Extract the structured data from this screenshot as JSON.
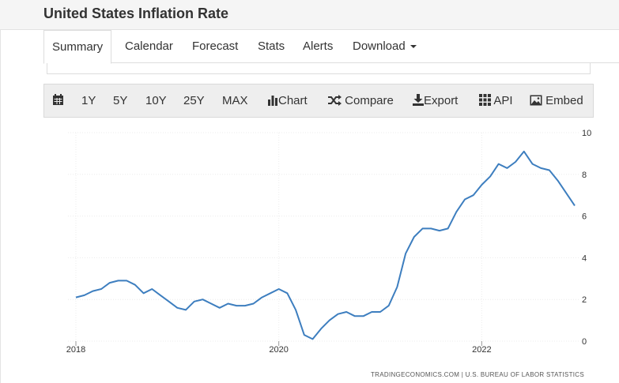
{
  "header": {
    "title": "United States Inflation Rate"
  },
  "tabs": [
    {
      "label": "Summary",
      "active": true
    },
    {
      "label": "Calendar"
    },
    {
      "label": "Forecast"
    },
    {
      "label": "Stats"
    },
    {
      "label": "Alerts"
    },
    {
      "label": "Download"
    }
  ],
  "toolbar": {
    "calendar_icon": "calendar-icon",
    "ranges": [
      "1Y",
      "5Y",
      "10Y",
      "25Y",
      "MAX"
    ],
    "chart_label": "Chart",
    "compare_label": "Compare",
    "export_label": "Export",
    "api_label": "API",
    "embed_label": "Embed"
  },
  "chart_data": {
    "type": "line",
    "color": "#3d7ebf",
    "x_ticks": [
      "2018",
      "2020",
      "2022"
    ],
    "y_ticks": [
      "0",
      "2",
      "4",
      "6",
      "8",
      "10"
    ],
    "ylim": [
      0,
      10
    ],
    "xlim": [
      "2018-01",
      "2022-12"
    ],
    "grid": true,
    "source": "TRADINGECONOMICS.COM | U.S. BUREAU OF LABOR STATISTICS",
    "x": [
      "2018-01",
      "2018-02",
      "2018-03",
      "2018-04",
      "2018-05",
      "2018-06",
      "2018-07",
      "2018-08",
      "2018-09",
      "2018-10",
      "2018-11",
      "2018-12",
      "2019-01",
      "2019-02",
      "2019-03",
      "2019-04",
      "2019-05",
      "2019-06",
      "2019-07",
      "2019-08",
      "2019-09",
      "2019-10",
      "2019-11",
      "2019-12",
      "2020-01",
      "2020-02",
      "2020-03",
      "2020-04",
      "2020-05",
      "2020-06",
      "2020-07",
      "2020-08",
      "2020-09",
      "2020-10",
      "2020-11",
      "2020-12",
      "2021-01",
      "2021-02",
      "2021-03",
      "2021-04",
      "2021-05",
      "2021-06",
      "2021-07",
      "2021-08",
      "2021-09",
      "2021-10",
      "2021-11",
      "2021-12",
      "2022-01",
      "2022-02",
      "2022-03",
      "2022-04",
      "2022-05",
      "2022-06",
      "2022-07",
      "2022-08",
      "2022-09",
      "2022-10",
      "2022-11",
      "2022-12"
    ],
    "values": [
      2.1,
      2.2,
      2.4,
      2.5,
      2.8,
      2.9,
      2.9,
      2.7,
      2.3,
      2.5,
      2.2,
      1.9,
      1.6,
      1.5,
      1.9,
      2.0,
      1.8,
      1.6,
      1.8,
      1.7,
      1.7,
      1.8,
      2.1,
      2.3,
      2.5,
      2.3,
      1.5,
      0.3,
      0.1,
      0.6,
      1.0,
      1.3,
      1.4,
      1.2,
      1.2,
      1.4,
      1.4,
      1.7,
      2.6,
      4.2,
      5.0,
      5.4,
      5.4,
      5.3,
      5.4,
      6.2,
      6.8,
      7.0,
      7.5,
      7.9,
      8.5,
      8.3,
      8.6,
      9.1,
      8.5,
      8.3,
      8.2,
      7.7,
      7.1,
      6.5
    ]
  }
}
